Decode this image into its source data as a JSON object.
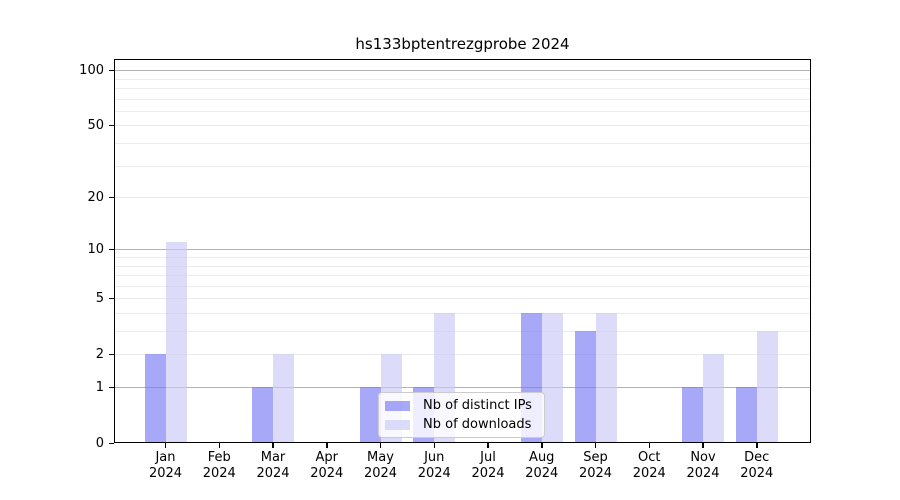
{
  "title": "hs133bptentrezgprobe 2024",
  "chart_data": {
    "type": "bar",
    "title": "hs133bptentrezgprobe 2024",
    "categories": [
      "Jan 2024",
      "Feb 2024",
      "Mar 2024",
      "Apr 2024",
      "May 2024",
      "Jun 2024",
      "Jul 2024",
      "Aug 2024",
      "Sep 2024",
      "Oct 2024",
      "Nov 2024",
      "Dec 2024"
    ],
    "series": [
      {
        "name": "Nb of distinct IPs",
        "values": [
          2,
          0,
          1,
          0,
          1,
          1,
          0,
          4,
          3,
          0,
          1,
          1
        ],
        "color": "#7979f4",
        "alpha": 0.65
      },
      {
        "name": "Nb of downloads",
        "values": [
          11,
          0,
          2,
          0,
          2,
          4,
          0,
          4,
          4,
          0,
          2,
          3
        ],
        "color": "#c9c9f7",
        "alpha": 0.65
      }
    ],
    "yscale": "log1p",
    "yticks": [
      0,
      1,
      2,
      5,
      10,
      20,
      50,
      100
    ],
    "minor_gridlines": [
      2,
      3,
      4,
      5,
      6,
      7,
      8,
      9,
      20,
      30,
      40,
      50,
      60,
      70,
      80,
      90
    ],
    "major_gridlines": [
      1,
      10,
      100
    ],
    "ylim": [
      0,
      115
    ],
    "xlabel": "",
    "ylabel": "",
    "grid": "horizontal",
    "legend_position": "lower center",
    "colors": {
      "major_grid": "#b3b3b3",
      "minor_grid": "#ececec",
      "spine": "#000000"
    }
  }
}
